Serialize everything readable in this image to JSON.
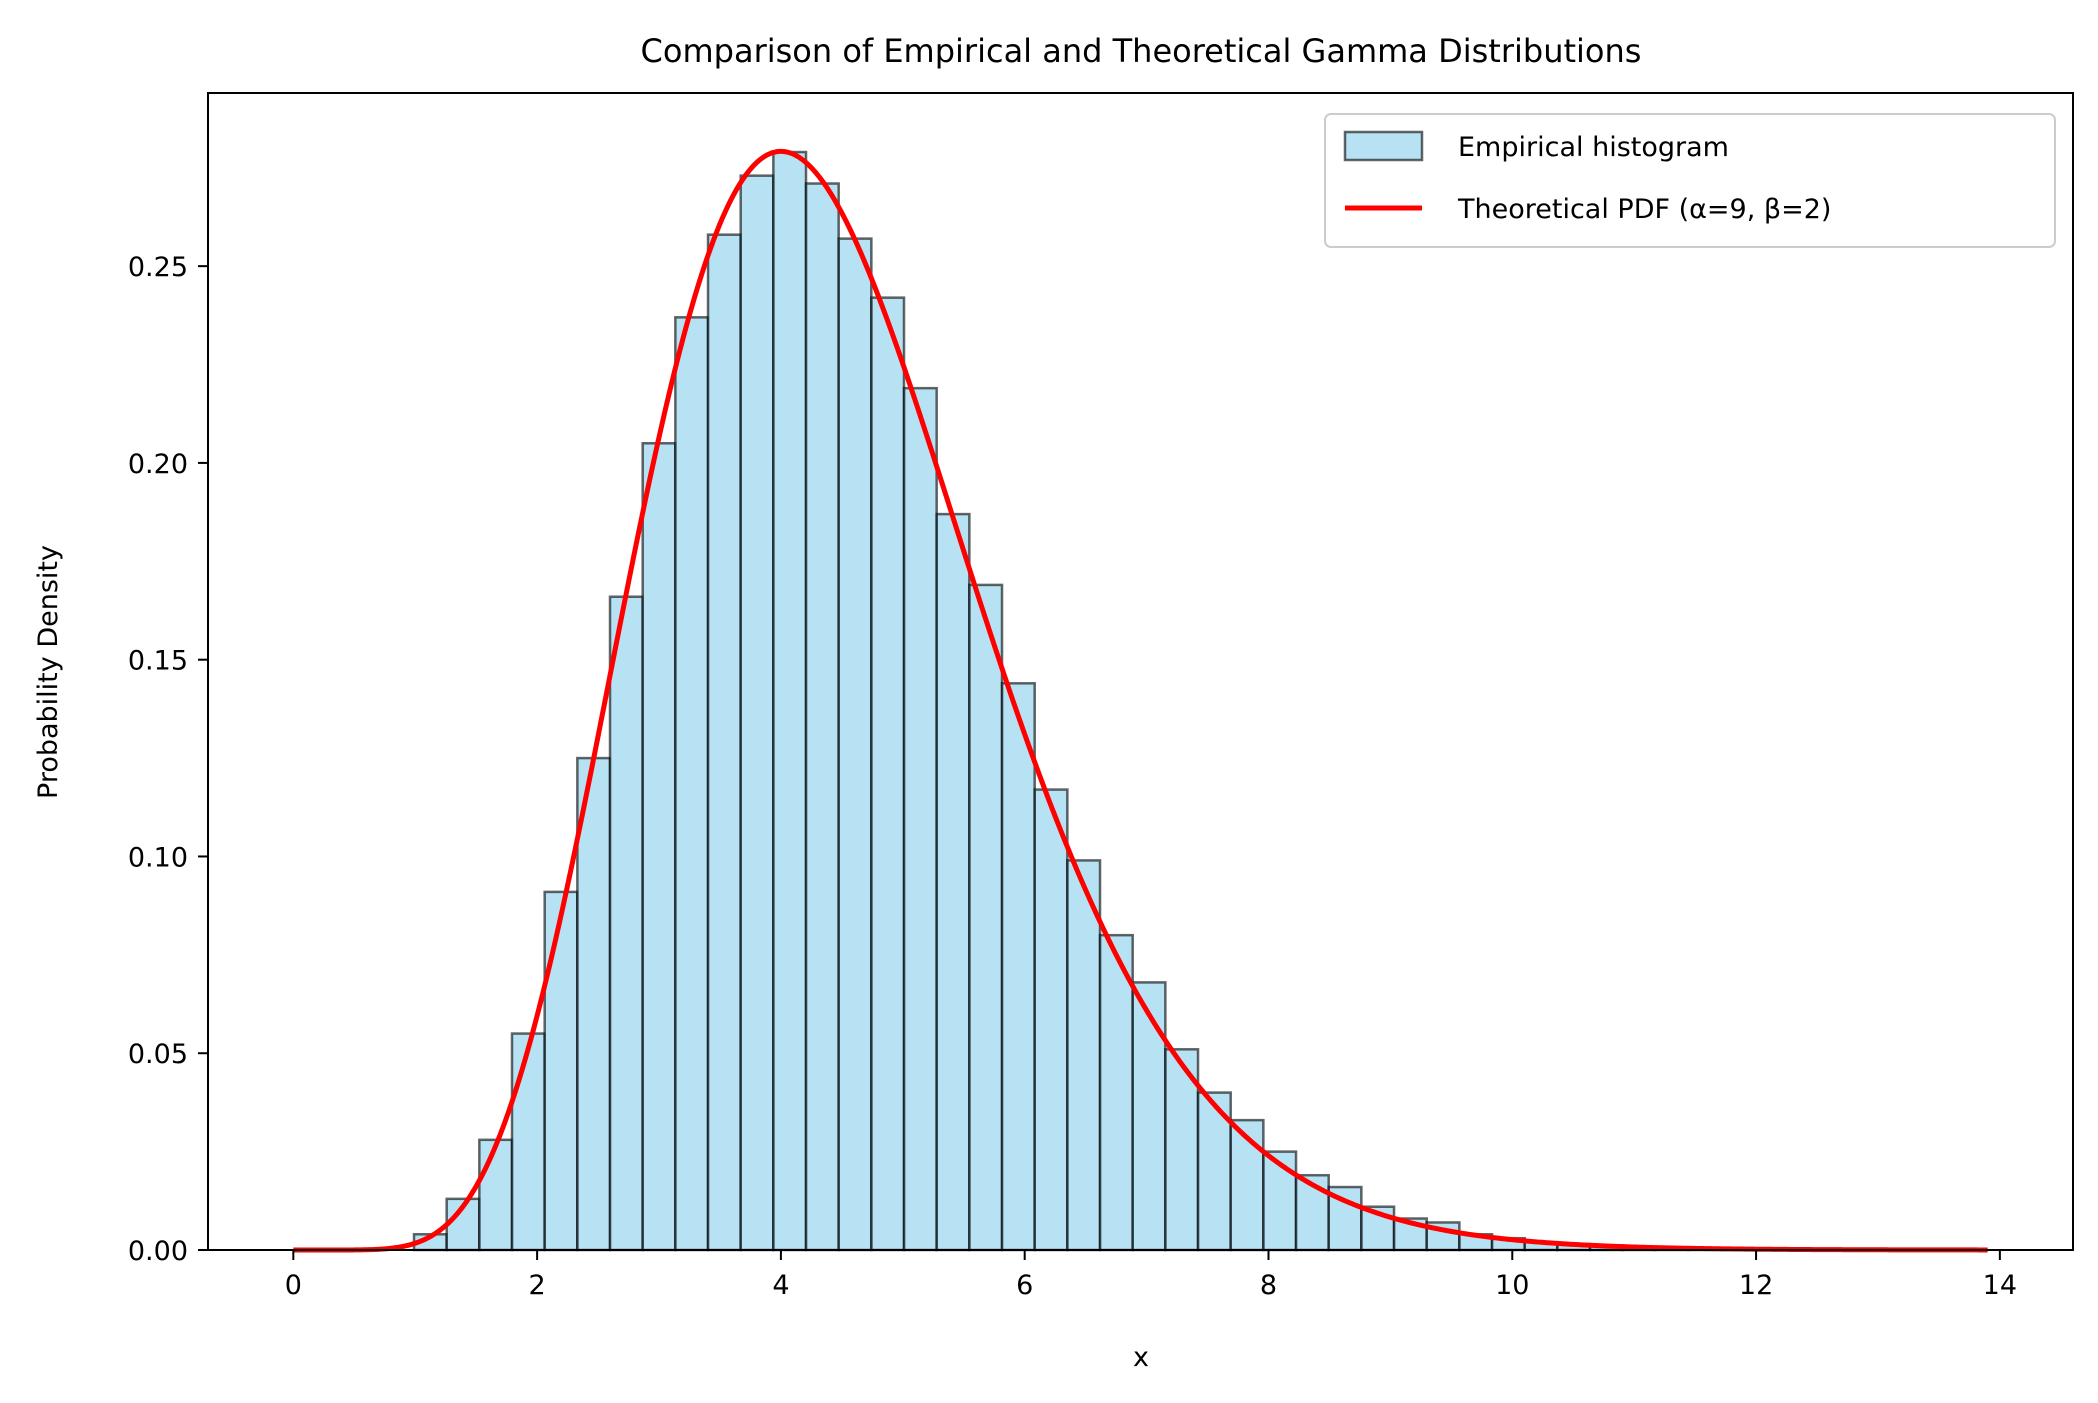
{
  "chart_data": {
    "type": "bar",
    "title": "Comparison of Empirical and Theoretical Gamma Distributions",
    "xlabel": "x",
    "ylabel": "Probability Density",
    "xlim": [
      -0.7,
      14.6
    ],
    "ylim": [
      0.0,
      0.294
    ],
    "grid": false,
    "legend_position": "top-right",
    "x_ticks": [
      0,
      2,
      4,
      6,
      8,
      10,
      12,
      14
    ],
    "x_tick_labels": [
      "0",
      "2",
      "4",
      "6",
      "8",
      "10",
      "12",
      "14"
    ],
    "y_ticks": [
      0.0,
      0.05,
      0.1,
      0.15,
      0.2,
      0.25
    ],
    "y_tick_labels": [
      "0.00",
      "0.05",
      "0.10",
      "0.15",
      "0.20",
      "0.25"
    ],
    "histogram": {
      "name": "Empirical histogram",
      "color": "#87ceeb",
      "edge_color": "#000000",
      "bin_edges": [
        0.99,
        1.258,
        1.526,
        1.794,
        2.062,
        2.33,
        2.598,
        2.866,
        3.134,
        3.402,
        3.67,
        3.938,
        4.206,
        4.474,
        4.742,
        5.01,
        5.278,
        5.546,
        5.814,
        6.082,
        6.35,
        6.618,
        6.886,
        7.154,
        7.422,
        7.69,
        7.958,
        8.226,
        8.494,
        8.762,
        9.03,
        9.298,
        9.566,
        9.834,
        10.102,
        10.37,
        10.638,
        10.906,
        11.174,
        11.442,
        11.71,
        11.978,
        12.246,
        12.514
      ],
      "densities": [
        0.004,
        0.013,
        0.028,
        0.055,
        0.091,
        0.125,
        0.166,
        0.205,
        0.237,
        0.258,
        0.273,
        0.279,
        0.271,
        0.257,
        0.242,
        0.219,
        0.187,
        0.169,
        0.144,
        0.117,
        0.099,
        0.08,
        0.068,
        0.051,
        0.04,
        0.033,
        0.025,
        0.019,
        0.016,
        0.011,
        0.008,
        0.007,
        0.004,
        0.003,
        0.002,
        0.0015,
        0.001,
        0.0008,
        0.0005,
        0.0003,
        0.0002,
        0.0001,
        0.0001
      ]
    },
    "pdf_curve": {
      "name": "Theoretical PDF (α=9, β=2)",
      "color": "#ff0000",
      "alpha": 9,
      "beta": 2,
      "x_start": 0,
      "x_end": 13.9
    }
  }
}
